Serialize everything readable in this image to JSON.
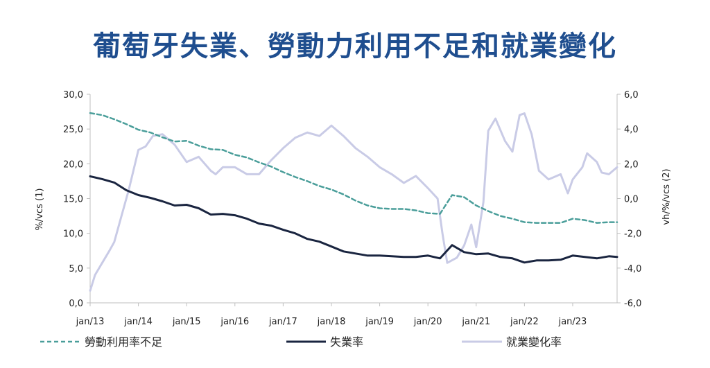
{
  "chart_data": {
    "type": "line",
    "title": "葡萄牙失業、勞動力利用不足和就業變化",
    "ylabel_left": "%/vcs (1)",
    "ylabel_right": "vh/%/vcs (2)",
    "ylim_left": [
      0,
      30
    ],
    "ylim_right": [
      -6,
      6
    ],
    "yticks_left": [
      "0,0",
      "5,0",
      "10,0",
      "15,0",
      "20,0",
      "25,0",
      "30,0"
    ],
    "yticks_right": [
      "-6,0",
      "-4,0",
      "-2,0",
      "0,0",
      "2,0",
      "4,0",
      "6,0"
    ],
    "xticks": [
      "jan/13",
      "jan/14",
      "jan/15",
      "jan/16",
      "jan/17",
      "jan/18",
      "jan/19",
      "jan/20",
      "jan/21",
      "jan/22",
      "jan/23"
    ],
    "xlim": [
      2013.0,
      2023.92
    ],
    "legend_position": "bottom",
    "series": [
      {
        "name": "勞動利用率不足",
        "axis": "left",
        "color": "#4a9e9a",
        "style": "dashed",
        "points": [
          [
            2013.0,
            27.3
          ],
          [
            2013.25,
            27.0
          ],
          [
            2013.5,
            26.4
          ],
          [
            2013.75,
            25.7
          ],
          [
            2014.0,
            24.9
          ],
          [
            2014.25,
            24.5
          ],
          [
            2014.5,
            23.8
          ],
          [
            2014.75,
            23.2
          ],
          [
            2015.0,
            23.3
          ],
          [
            2015.25,
            22.6
          ],
          [
            2015.5,
            22.1
          ],
          [
            2015.75,
            22.0
          ],
          [
            2016.0,
            21.3
          ],
          [
            2016.25,
            20.9
          ],
          [
            2016.5,
            20.2
          ],
          [
            2016.75,
            19.6
          ],
          [
            2017.0,
            18.8
          ],
          [
            2017.25,
            18.1
          ],
          [
            2017.5,
            17.5
          ],
          [
            2017.75,
            16.8
          ],
          [
            2018.0,
            16.3
          ],
          [
            2018.25,
            15.6
          ],
          [
            2018.5,
            14.7
          ],
          [
            2018.75,
            14.0
          ],
          [
            2019.0,
            13.6
          ],
          [
            2019.25,
            13.5
          ],
          [
            2019.5,
            13.5
          ],
          [
            2019.75,
            13.3
          ],
          [
            2020.0,
            12.9
          ],
          [
            2020.25,
            12.8
          ],
          [
            2020.5,
            15.5
          ],
          [
            2020.75,
            15.2
          ],
          [
            2021.0,
            14.0
          ],
          [
            2021.25,
            13.2
          ],
          [
            2021.5,
            12.5
          ],
          [
            2021.75,
            12.1
          ],
          [
            2022.0,
            11.6
          ],
          [
            2022.25,
            11.5
          ],
          [
            2022.5,
            11.5
          ],
          [
            2022.75,
            11.5
          ],
          [
            2023.0,
            12.1
          ],
          [
            2023.25,
            11.9
          ],
          [
            2023.5,
            11.5
          ],
          [
            2023.75,
            11.6
          ],
          [
            2023.92,
            11.6
          ]
        ]
      },
      {
        "name": "失業率",
        "axis": "left",
        "color": "#1a2540",
        "style": "solid",
        "points": [
          [
            2013.0,
            18.2
          ],
          [
            2013.25,
            17.8
          ],
          [
            2013.5,
            17.3
          ],
          [
            2013.75,
            16.2
          ],
          [
            2014.0,
            15.5
          ],
          [
            2014.25,
            15.1
          ],
          [
            2014.5,
            14.6
          ],
          [
            2014.75,
            14.0
          ],
          [
            2015.0,
            14.1
          ],
          [
            2015.25,
            13.6
          ],
          [
            2015.5,
            12.7
          ],
          [
            2015.75,
            12.8
          ],
          [
            2016.0,
            12.6
          ],
          [
            2016.25,
            12.1
          ],
          [
            2016.5,
            11.4
          ],
          [
            2016.75,
            11.1
          ],
          [
            2017.0,
            10.5
          ],
          [
            2017.25,
            10.0
          ],
          [
            2017.5,
            9.2
          ],
          [
            2017.75,
            8.8
          ],
          [
            2018.0,
            8.1
          ],
          [
            2018.25,
            7.4
          ],
          [
            2018.5,
            7.1
          ],
          [
            2018.75,
            6.8
          ],
          [
            2019.0,
            6.8
          ],
          [
            2019.25,
            6.7
          ],
          [
            2019.5,
            6.6
          ],
          [
            2019.75,
            6.6
          ],
          [
            2020.0,
            6.8
          ],
          [
            2020.25,
            6.4
          ],
          [
            2020.5,
            8.3
          ],
          [
            2020.75,
            7.3
          ],
          [
            2021.0,
            7.0
          ],
          [
            2021.25,
            7.1
          ],
          [
            2021.5,
            6.6
          ],
          [
            2021.75,
            6.4
          ],
          [
            2022.0,
            5.8
          ],
          [
            2022.25,
            6.1
          ],
          [
            2022.5,
            6.1
          ],
          [
            2022.75,
            6.2
          ],
          [
            2023.0,
            6.8
          ],
          [
            2023.25,
            6.6
          ],
          [
            2023.5,
            6.4
          ],
          [
            2023.75,
            6.7
          ],
          [
            2023.92,
            6.6
          ]
        ]
      },
      {
        "name": "就業變化率",
        "axis": "right",
        "color": "#c9cbe6",
        "style": "solid",
        "points": [
          [
            2013.0,
            -5.3
          ],
          [
            2013.1,
            -4.4
          ],
          [
            2013.25,
            -3.7
          ],
          [
            2013.4,
            -3.0
          ],
          [
            2013.5,
            -2.5
          ],
          [
            2013.65,
            -1.0
          ],
          [
            2013.8,
            0.5
          ],
          [
            2014.0,
            2.8
          ],
          [
            2014.15,
            3.0
          ],
          [
            2014.3,
            3.6
          ],
          [
            2014.5,
            3.7
          ],
          [
            2014.75,
            3.1
          ],
          [
            2015.0,
            2.1
          ],
          [
            2015.25,
            2.4
          ],
          [
            2015.5,
            1.6
          ],
          [
            2015.6,
            1.4
          ],
          [
            2015.75,
            1.8
          ],
          [
            2016.0,
            1.8
          ],
          [
            2016.25,
            1.4
          ],
          [
            2016.5,
            1.4
          ],
          [
            2016.75,
            2.2
          ],
          [
            2017.0,
            2.9
          ],
          [
            2017.25,
            3.5
          ],
          [
            2017.5,
            3.8
          ],
          [
            2017.75,
            3.6
          ],
          [
            2018.0,
            4.2
          ],
          [
            2018.25,
            3.6
          ],
          [
            2018.5,
            2.9
          ],
          [
            2018.75,
            2.4
          ],
          [
            2019.0,
            1.8
          ],
          [
            2019.25,
            1.4
          ],
          [
            2019.5,
            0.9
          ],
          [
            2019.75,
            1.3
          ],
          [
            2020.0,
            0.6
          ],
          [
            2020.2,
            0.0
          ],
          [
            2020.3,
            -2.0
          ],
          [
            2020.4,
            -3.7
          ],
          [
            2020.6,
            -3.4
          ],
          [
            2020.75,
            -2.7
          ],
          [
            2020.9,
            -1.5
          ],
          [
            2021.0,
            -2.8
          ],
          [
            2021.15,
            -0.2
          ],
          [
            2021.25,
            3.9
          ],
          [
            2021.4,
            4.6
          ],
          [
            2021.6,
            3.3
          ],
          [
            2021.75,
            2.7
          ],
          [
            2021.9,
            4.8
          ],
          [
            2022.0,
            4.9
          ],
          [
            2022.15,
            3.7
          ],
          [
            2022.3,
            1.6
          ],
          [
            2022.5,
            1.1
          ],
          [
            2022.75,
            1.4
          ],
          [
            2022.9,
            0.3
          ],
          [
            2023.0,
            1.1
          ],
          [
            2023.2,
            1.8
          ],
          [
            2023.3,
            2.6
          ],
          [
            2023.5,
            2.1
          ],
          [
            2023.6,
            1.5
          ],
          [
            2023.75,
            1.4
          ],
          [
            2023.92,
            1.8
          ]
        ]
      }
    ]
  }
}
